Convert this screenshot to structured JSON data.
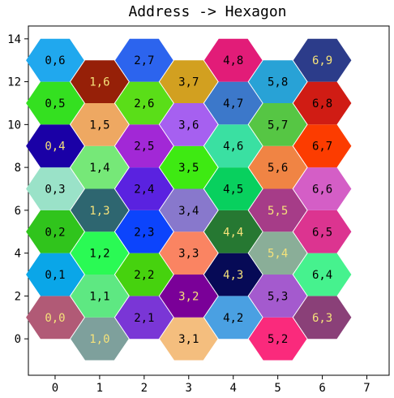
{
  "chart_data": {
    "type": "hexagon-grid",
    "title": "Address -> Hexagon",
    "xlabel": "",
    "ylabel": "",
    "xlim": [
      -0.6,
      7.5
    ],
    "ylim": [
      -1.7,
      14.6
    ],
    "xticks": [
      0,
      1,
      2,
      3,
      4,
      5,
      6,
      7
    ],
    "yticks": [
      0,
      2,
      4,
      6,
      8,
      10,
      12,
      14
    ],
    "grid": false,
    "hexagons": [
      {
        "col": 0,
        "row": 0,
        "label": "0,0",
        "color": "#b15a76",
        "text_color": "#f5e27a"
      },
      {
        "col": 0,
        "row": 1,
        "label": "0,1",
        "color": "#0aa6e8",
        "text_color": "#000000"
      },
      {
        "col": 0,
        "row": 2,
        "label": "0,2",
        "color": "#30c41c",
        "text_color": "#000000"
      },
      {
        "col": 0,
        "row": 3,
        "label": "0,3",
        "color": "#9ae2c8",
        "text_color": "#000000"
      },
      {
        "col": 0,
        "row": 4,
        "label": "0,4",
        "color": "#1a00a6",
        "text_color": "#f5e27a"
      },
      {
        "col": 0,
        "row": 5,
        "label": "0,5",
        "color": "#34e020",
        "text_color": "#000000"
      },
      {
        "col": 0,
        "row": 6,
        "label": "0,6",
        "color": "#20a8ee",
        "text_color": "#000000"
      },
      {
        "col": 1,
        "row": 0,
        "label": "1,0",
        "color": "#7ea09c",
        "text_color": "#f5e27a"
      },
      {
        "col": 1,
        "row": 1,
        "label": "1,1",
        "color": "#5ee882",
        "text_color": "#000000"
      },
      {
        "col": 1,
        "row": 2,
        "label": "1,2",
        "color": "#2afa54",
        "text_color": "#000000"
      },
      {
        "col": 1,
        "row": 3,
        "label": "1,3",
        "color": "#2e6670",
        "text_color": "#f5e27a"
      },
      {
        "col": 1,
        "row": 4,
        "label": "1,4",
        "color": "#76e878",
        "text_color": "#000000"
      },
      {
        "col": 1,
        "row": 5,
        "label": "1,5",
        "color": "#eea862",
        "text_color": "#000000"
      },
      {
        "col": 1,
        "row": 6,
        "label": "1,6",
        "color": "#962008",
        "text_color": "#f5e27a"
      },
      {
        "col": 2,
        "row": 0,
        "label": "2,1",
        "color": "#7a36d6",
        "text_color": "#000000"
      },
      {
        "col": 2,
        "row": 1,
        "label": "2,2",
        "color": "#46d20e",
        "text_color": "#000000"
      },
      {
        "col": 2,
        "row": 2,
        "label": "2,3",
        "color": "#0c44fc",
        "text_color": "#000000"
      },
      {
        "col": 2,
        "row": 3,
        "label": "2,4",
        "color": "#5a22e0",
        "text_color": "#000000"
      },
      {
        "col": 2,
        "row": 4,
        "label": "2,5",
        "color": "#a228d6",
        "text_color": "#000000"
      },
      {
        "col": 2,
        "row": 5,
        "label": "2,6",
        "color": "#5ade18",
        "text_color": "#000000"
      },
      {
        "col": 2,
        "row": 6,
        "label": "2,7",
        "color": "#2c64ee",
        "text_color": "#000000"
      },
      {
        "col": 3,
        "row": 0,
        "label": "3,1",
        "color": "#f4be7e",
        "text_color": "#000000"
      },
      {
        "col": 3,
        "row": 1,
        "label": "3,2",
        "color": "#7a0098",
        "text_color": "#f5e27a"
      },
      {
        "col": 3,
        "row": 2,
        "label": "3,3",
        "color": "#fa8462",
        "text_color": "#000000"
      },
      {
        "col": 3,
        "row": 3,
        "label": "3,4",
        "color": "#8878cc",
        "text_color": "#000000"
      },
      {
        "col": 3,
        "row": 4,
        "label": "3,5",
        "color": "#3eea12",
        "text_color": "#000000"
      },
      {
        "col": 3,
        "row": 5,
        "label": "3,6",
        "color": "#a660f0",
        "text_color": "#000000"
      },
      {
        "col": 3,
        "row": 6,
        "label": "3,7",
        "color": "#d2a020",
        "text_color": "#000000"
      },
      {
        "col": 4,
        "row": 0,
        "label": "4,2",
        "color": "#4aa0e2",
        "text_color": "#000000"
      },
      {
        "col": 4,
        "row": 1,
        "label": "4,3",
        "color": "#060a56",
        "text_color": "#f5e27a"
      },
      {
        "col": 4,
        "row": 2,
        "label": "4,4",
        "color": "#267832",
        "text_color": "#f5e27a"
      },
      {
        "col": 4,
        "row": 3,
        "label": "4,5",
        "color": "#08d05e",
        "text_color": "#000000"
      },
      {
        "col": 4,
        "row": 4,
        "label": "4,6",
        "color": "#3ae0a2",
        "text_color": "#000000"
      },
      {
        "col": 4,
        "row": 5,
        "label": "4,7",
        "color": "#3c78ca",
        "text_color": "#000000"
      },
      {
        "col": 4,
        "row": 6,
        "label": "4,8",
        "color": "#e21c78",
        "text_color": "#000000"
      },
      {
        "col": 5,
        "row": 0,
        "label": "5,2",
        "color": "#fa2a7c",
        "text_color": "#000000"
      },
      {
        "col": 5,
        "row": 1,
        "label": "5,3",
        "color": "#a45ace",
        "text_color": "#000000"
      },
      {
        "col": 5,
        "row": 2,
        "label": "5,4",
        "color": "#8aae98",
        "text_color": "#f5e27a"
      },
      {
        "col": 5,
        "row": 3,
        "label": "5,5",
        "color": "#a63c88",
        "text_color": "#f5e27a"
      },
      {
        "col": 5,
        "row": 4,
        "label": "5,6",
        "color": "#f08444",
        "text_color": "#000000"
      },
      {
        "col": 5,
        "row": 5,
        "label": "5,7",
        "color": "#56c644",
        "text_color": "#000000"
      },
      {
        "col": 5,
        "row": 6,
        "label": "5,8",
        "color": "#28a2d6",
        "text_color": "#000000"
      },
      {
        "col": 6,
        "row": 0,
        "label": "6,3",
        "color": "#8a4078",
        "text_color": "#f5e27a"
      },
      {
        "col": 6,
        "row": 1,
        "label": "6,4",
        "color": "#46f28e",
        "text_color": "#000000"
      },
      {
        "col": 6,
        "row": 2,
        "label": "6,5",
        "color": "#dc3490",
        "text_color": "#000000"
      },
      {
        "col": 6,
        "row": 3,
        "label": "6,6",
        "color": "#d45ec6",
        "text_color": "#000000"
      },
      {
        "col": 6,
        "row": 4,
        "label": "6,7",
        "color": "#fc3c00",
        "text_color": "#000000"
      },
      {
        "col": 6,
        "row": 5,
        "label": "6,8",
        "color": "#d01c14",
        "text_color": "#000000"
      },
      {
        "col": 6,
        "row": 6,
        "label": "6,9",
        "color": "#2c3c8a",
        "text_color": "#f5e27a"
      }
    ]
  }
}
